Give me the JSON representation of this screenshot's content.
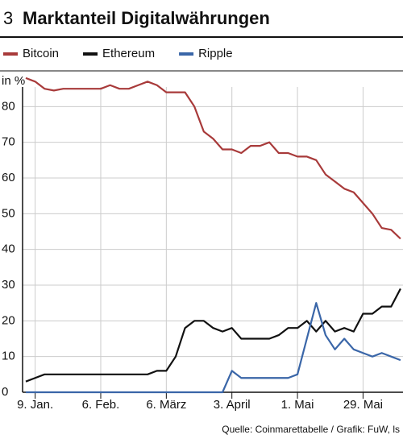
{
  "chart_data": {
    "type": "line",
    "number": "3",
    "title": "Marktanteil Digitalwährungen",
    "y_label": "in %",
    "source": "Quelle: Coinmarettabelle / Grafik: FuW, ls",
    "categories": [
      null,
      "9. Jan.",
      null,
      null,
      null,
      null,
      null,
      null,
      "6. Feb.",
      null,
      null,
      null,
      null,
      null,
      null,
      "6. März",
      null,
      null,
      null,
      null,
      null,
      null,
      "3. April",
      null,
      null,
      null,
      null,
      null,
      null,
      "1. Mai",
      null,
      null,
      null,
      null,
      null,
      null,
      "29. Mai",
      null,
      null,
      null,
      null
    ],
    "series": [
      {
        "name": "Bitcoin",
        "color": "#a83a3a",
        "values": [
          88,
          87,
          85,
          84.5,
          85,
          85,
          85,
          85,
          85,
          86,
          85,
          85,
          86,
          87,
          86,
          84,
          84,
          84,
          80,
          73,
          71,
          68,
          68,
          67,
          69,
          69,
          70,
          67,
          67,
          66,
          66,
          65,
          61,
          59,
          57,
          56,
          53,
          50,
          46,
          45.5,
          43
        ]
      },
      {
        "name": "Ethereum",
        "color": "#111111",
        "values": [
          3,
          4,
          5,
          5,
          5,
          5,
          5,
          5,
          5,
          5,
          5,
          5,
          5,
          5,
          6,
          6,
          10,
          18,
          20,
          20,
          18,
          17,
          18,
          15,
          15,
          15,
          15,
          16,
          18,
          18,
          20,
          17,
          20,
          17,
          18,
          17,
          22,
          22,
          24,
          24,
          29
        ]
      },
      {
        "name": "Ripple",
        "color": "#3a66a8",
        "values": [
          0,
          0,
          0,
          0,
          0,
          0,
          0,
          0,
          0,
          0,
          0,
          0,
          0,
          0,
          0,
          0,
          0,
          0,
          0,
          0,
          0,
          0,
          6,
          4,
          4,
          4,
          4,
          4,
          4,
          5,
          15,
          25,
          16,
          12,
          15,
          12,
          11,
          10,
          11,
          10,
          9
        ]
      }
    ],
    "ylim": [
      0,
      90
    ],
    "yticks": [
      0,
      10,
      20,
      30,
      40,
      50,
      60,
      70,
      80
    ],
    "grid": true
  }
}
